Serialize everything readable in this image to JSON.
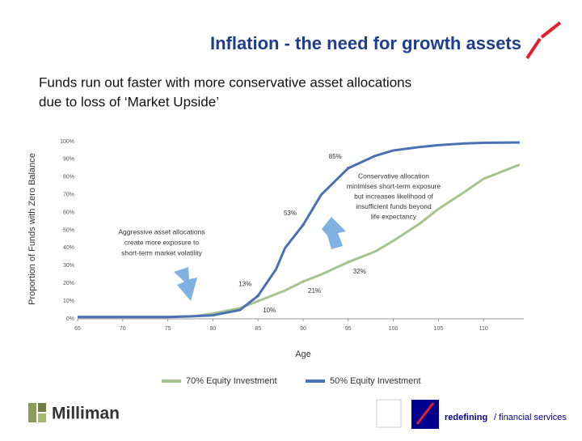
{
  "chart_data": {
    "type": "line",
    "title": "Inflation - the need for growth assets",
    "subtitle": [
      "Funds run out faster with more conservative asset allocations",
      "due to loss of ‘Market Upside’"
    ],
    "x_label": "Age",
    "y_label": "Proportion of Funds with Zero Balance",
    "x": [
      65,
      70,
      75,
      78,
      80,
      83,
      85,
      87,
      88,
      90,
      92,
      95,
      98,
      100,
      103,
      105,
      108,
      110,
      113,
      114
    ],
    "series": [
      {
        "name": "70% Equity Investment",
        "color": "#a6c48e",
        "values": [
          1,
          1,
          1,
          1.5,
          3,
          6,
          10,
          14,
          16,
          21,
          25,
          32,
          38,
          44,
          54,
          62,
          72,
          79,
          85,
          87
        ],
        "value_labels": [
          null,
          null,
          null,
          null,
          null,
          null,
          "10%",
          null,
          null,
          "21%",
          null,
          "32%",
          null,
          null,
          null,
          null,
          null,
          null,
          null,
          null
        ]
      },
      {
        "name": "50% Equity Investment",
        "color": "#4a70b5",
        "values": [
          1,
          1,
          1,
          1.5,
          2,
          5,
          13,
          28,
          40,
          53,
          70,
          85,
          92,
          95,
          97,
          98,
          99,
          99.3,
          99.5,
          99.5
        ],
        "value_labels": [
          null,
          null,
          null,
          null,
          null,
          null,
          "13%",
          null,
          null,
          "53%",
          null,
          "85%",
          null,
          null,
          null,
          null,
          null,
          null,
          null,
          null
        ]
      }
    ],
    "xlim": [
      65,
      115
    ],
    "xticks": [
      65,
      70,
      75,
      80,
      85,
      90,
      95,
      100,
      105,
      110
    ],
    "ylim": [
      0,
      100
    ],
    "yticks": [
      {
        "value": 0,
        "label": "0%"
      },
      {
        "value": 10,
        "label": "10%"
      },
      {
        "value": 20,
        "label": "20%"
      },
      {
        "value": 30,
        "label": "30%"
      },
      {
        "value": 40,
        "label": "40%"
      },
      {
        "value": 50,
        "label": "50%"
      },
      {
        "value": 60,
        "label": "60%"
      },
      {
        "value": 70,
        "label": "70%"
      },
      {
        "value": 80,
        "label": "80%"
      },
      {
        "value": 90,
        "label": "90%"
      },
      {
        "value": 100,
        "label": "100%"
      }
    ],
    "annotations": [
      {
        "lines": [
          "Aggressive asset allocations",
          "create more exposure to",
          "short-term market volatility"
        ]
      },
      {
        "lines": [
          "Conservative allocation",
          "minimises short-term exposure",
          "but increases likelihood of",
          "insufficient funds beyond",
          "life expectancy"
        ]
      }
    ],
    "footer": {
      "left_logo": "Milliman",
      "right_text": [
        "redefining",
        "/ financial services"
      ]
    }
  }
}
